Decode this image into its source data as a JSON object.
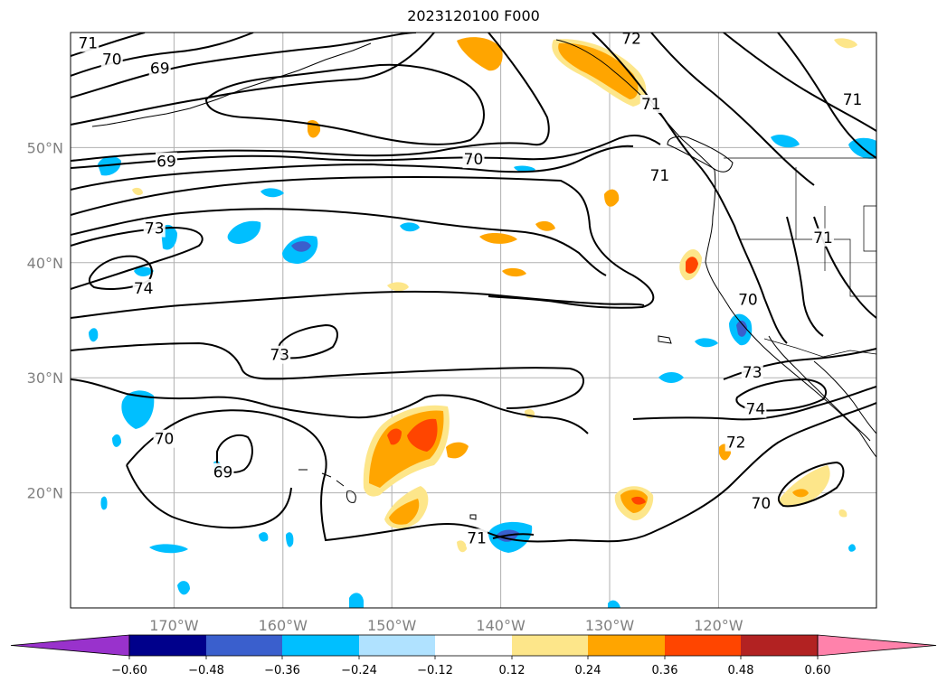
{
  "title": "2023120100 F000",
  "map": {
    "lon_range": [
      -179.5,
      -105.5
    ],
    "lat_range": [
      10,
      60
    ],
    "lon_ticks": [
      {
        "value": -170,
        "label": "170°W"
      },
      {
        "value": -160,
        "label": "160°W"
      },
      {
        "value": -150,
        "label": "150°W"
      },
      {
        "value": -140,
        "label": "140°W"
      },
      {
        "value": -130,
        "label": "130°W"
      },
      {
        "value": -120,
        "label": "120°W"
      }
    ],
    "lat_ticks": [
      {
        "value": 50,
        "label": "50°N"
      },
      {
        "value": 40,
        "label": "40°N"
      },
      {
        "value": 30,
        "label": "30°N"
      },
      {
        "value": 20,
        "label": "20°N"
      }
    ],
    "grid": true,
    "contour_labels": [
      {
        "text": "71",
        "lon": -177.9,
        "lat": 59.1
      },
      {
        "text": "70",
        "lon": -175.7,
        "lat": 57.7
      },
      {
        "text": "69",
        "lon": -171.3,
        "lat": 56.9
      },
      {
        "text": "69",
        "lon": -170.7,
        "lat": 48.8
      },
      {
        "text": "70",
        "lon": -142.5,
        "lat": 49.0
      },
      {
        "text": "73",
        "lon": -171.8,
        "lat": 43.0
      },
      {
        "text": "74",
        "lon": -172.8,
        "lat": 37.8
      },
      {
        "text": "73",
        "lon": -160.3,
        "lat": 32.0
      },
      {
        "text": "70",
        "lon": -170.9,
        "lat": 24.7
      },
      {
        "text": "69",
        "lon": -165.5,
        "lat": 21.8
      },
      {
        "text": "71",
        "lon": -142.2,
        "lat": 16.1
      },
      {
        "text": "72",
        "lon": -128.0,
        "lat": 59.5
      },
      {
        "text": "71",
        "lon": -126.2,
        "lat": 53.8
      },
      {
        "text": "71",
        "lon": -125.4,
        "lat": 47.6
      },
      {
        "text": "71",
        "lon": -107.7,
        "lat": 54.2
      },
      {
        "text": "71",
        "lon": -110.4,
        "lat": 42.2
      },
      {
        "text": "70",
        "lon": -117.3,
        "lat": 36.8
      },
      {
        "text": "73",
        "lon": -116.9,
        "lat": 30.5
      },
      {
        "text": "74",
        "lon": -116.6,
        "lat": 27.3
      },
      {
        "text": "72",
        "lon": -118.4,
        "lat": 24.4
      },
      {
        "text": "70",
        "lon": -116.1,
        "lat": 19.1
      }
    ]
  },
  "colorbar": {
    "colors": [
      "#9932cc",
      "#00008b",
      "#3a5fcd",
      "#00bfff",
      "#b0e2ff",
      "#ffffff",
      "#fde68a",
      "#ffa500",
      "#ff4500",
      "#b22222",
      "#ff82ab"
    ],
    "tick_labels": [
      "−0.60",
      "−0.48",
      "−0.36",
      "−0.24",
      "−0.12",
      "0.12",
      "0.24",
      "0.36",
      "0.48",
      "0.60"
    ],
    "extend": "both"
  }
}
